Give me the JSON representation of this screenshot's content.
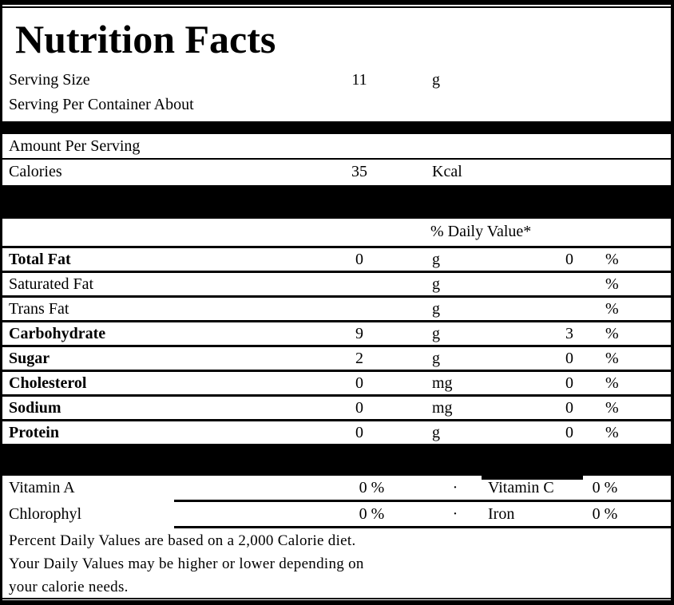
{
  "colors": {
    "ink": "#000000",
    "paper": "#ffffff"
  },
  "title": "Nutrition Facts",
  "serving": {
    "size_label": "Serving Size",
    "size_value": "11",
    "size_unit": "g",
    "per_container_label": "Serving Per Container About"
  },
  "amount_per_serving_label": "Amount Per Serving",
  "calories": {
    "label": "Calories",
    "value": "35",
    "unit": "Kcal"
  },
  "daily_value_header": "% Daily Value*",
  "nutrients": [
    {
      "name": "Total Fat",
      "value": "0",
      "unit": "g",
      "dv": "0",
      "pct": "%"
    },
    {
      "name": "Saturated Fat",
      "value": "",
      "unit": "g",
      "dv": "",
      "pct": "%"
    },
    {
      "name": "Trans Fat",
      "value": "",
      "unit": "g",
      "dv": "",
      "pct": "%"
    },
    {
      "name": "Carbohydrate",
      "value": "9",
      "unit": "g",
      "dv": "3",
      "pct": "%"
    },
    {
      "name": "Sugar",
      "value": "2",
      "unit": "g",
      "dv": "0",
      "pct": "%"
    },
    {
      "name": "Cholesterol",
      "value": "0",
      "unit": "mg",
      "dv": "0",
      "pct": "%"
    },
    {
      "name": "Sodium",
      "value": "0",
      "unit": "mg",
      "dv": "0",
      "pct": "%"
    },
    {
      "name": "Protein",
      "value": "0",
      "unit": "g",
      "dv": "0",
      "pct": "%"
    }
  ],
  "vitamins": [
    {
      "name": "Vitamin A",
      "value": "0 %",
      "bullet": "·",
      "name2": "Vitamin C",
      "value2": "0 %"
    },
    {
      "name": "Chlorophyl",
      "value": "0 %",
      "bullet": "·",
      "name2": "Iron",
      "value2": "0 %"
    }
  ],
  "footnotes": [
    "Percent Daily Values are based on a 2,000 Calorie diet.",
    "Your Daily Values may be higher or lower depending on",
    "your calorie needs."
  ]
}
